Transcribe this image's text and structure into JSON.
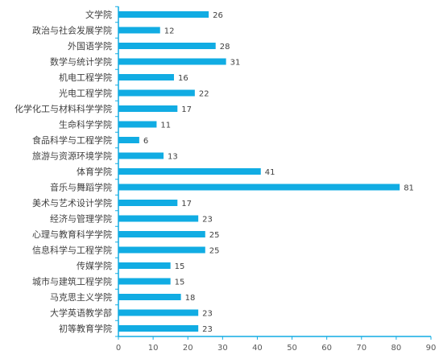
{
  "chart_data": {
    "type": "bar",
    "orientation": "horizontal",
    "categories": [
      "文学院",
      "政治与社会发展学院",
      "外国语学院",
      "数学与统计学院",
      "机电工程学院",
      "光电工程学院",
      "化学化工与材料科学学院",
      "生命科学学院",
      "食品科学与工程学院",
      "旅游与资源环境学院",
      "体育学院",
      "音乐与舞蹈学院",
      "美术与艺术设计学院",
      "经济与管理学院",
      "心理与教育科学学院",
      "信息科学与工程学院",
      "传媒学院",
      "城市与建筑工程学院",
      "马克思主义学院",
      "大学英语教学部",
      "初等教育学院"
    ],
    "values": [
      26,
      12,
      28,
      31,
      16,
      22,
      17,
      11,
      6,
      13,
      41,
      81,
      17,
      23,
      25,
      25,
      15,
      15,
      18,
      23,
      23
    ],
    "xlim": [
      0,
      90
    ],
    "xticks": [
      0,
      10,
      20,
      30,
      40,
      50,
      60,
      70,
      80,
      90
    ],
    "grid": false,
    "legend": "none",
    "colors": {
      "bar": "#11ACE3",
      "axis": "#11ACE3",
      "text": "#404040"
    }
  }
}
